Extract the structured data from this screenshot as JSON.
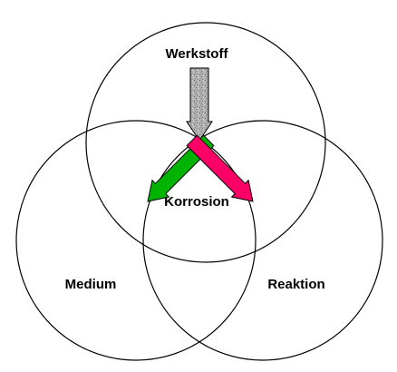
{
  "diagram": {
    "circles": [
      {
        "id": "werkstoff",
        "label": "Werkstoff"
      },
      {
        "id": "medium",
        "label": "Medium"
      },
      {
        "id": "reaktion",
        "label": "Reaktion"
      }
    ],
    "center_label": "Korrosion",
    "colors": {
      "circle_stroke": "#000000",
      "arrow_werkstoff": "#a6a6a6",
      "arrow_medium": "#00b300",
      "arrow_reaktion": "#ff0066",
      "arrow_outline": "#000000"
    },
    "arrow_patterns": {
      "werkstoff": "speckled-gray",
      "medium": "solid",
      "reaktion": "solid"
    }
  }
}
